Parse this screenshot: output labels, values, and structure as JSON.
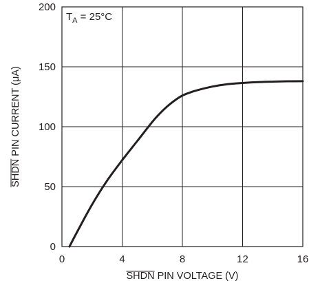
{
  "chart_data": {
    "type": "line",
    "title": "",
    "xlabel": "SHDN PIN VOLTAGE (V)",
    "ylabel": "SHDN PIN CURRENT (μA)",
    "xlabel_overline": "SHDN",
    "xlabel_rest": " PIN VOLTAGE (V)",
    "ylabel_overline": "SHDN",
    "ylabel_rest": " PIN CURRENT (μA)",
    "xlim": [
      0,
      16
    ],
    "ylim": [
      0,
      200
    ],
    "xticks": [
      0,
      4,
      8,
      12,
      16
    ],
    "yticks": [
      0,
      50,
      100,
      150,
      200
    ],
    "grid": true,
    "annotation": {
      "main": "T",
      "sub": "A",
      "rest": " = 25°C",
      "full": "TA = 25°C"
    },
    "series": [
      {
        "x": [
          0.5,
          1.0,
          2.0,
          3.0,
          4.0,
          5.0,
          6.0,
          6.5,
          7.0,
          7.5,
          8.0,
          8.5,
          9.0,
          10.0,
          11.0,
          12.0,
          13.0,
          14.0,
          15.0,
          16.0
        ],
        "y": [
          0,
          12,
          35,
          55,
          72,
          88,
          104,
          111,
          117,
          122,
          126,
          128.5,
          130.5,
          133.5,
          135.5,
          136.5,
          137.2,
          137.6,
          137.9,
          138
        ]
      }
    ]
  }
}
